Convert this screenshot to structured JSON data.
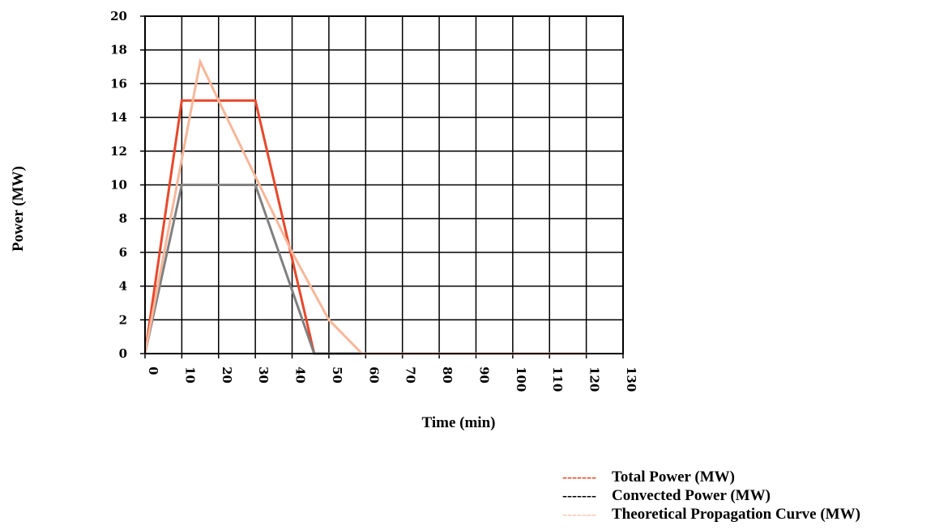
{
  "chart_data": {
    "type": "line",
    "title": "",
    "xlabel": "Time (min)",
    "ylabel": "Power (MW)",
    "xlim": [
      0,
      130
    ],
    "ylim": [
      0,
      20
    ],
    "x_ticks": [
      "0",
      "10",
      "20",
      "30",
      "40",
      "50",
      "60",
      "70",
      "80",
      "90",
      "100",
      "110",
      "120",
      "130"
    ],
    "y_ticks": [
      "0",
      "2",
      "4",
      "6",
      "8",
      "10",
      "12",
      "14",
      "16",
      "18",
      "20"
    ],
    "grid": true,
    "legend_position": "bottom-right",
    "series": [
      {
        "name": "Total Power (MW)",
        "legend_dash": "-------",
        "color": "#e8472a",
        "x": [
          0,
          10,
          30,
          46,
          120
        ],
        "y": [
          0,
          15,
          15,
          0,
          0
        ]
      },
      {
        "name": "Convected Power (MW)",
        "legend_dash": "-------",
        "color": "#808080",
        "x": [
          0,
          10,
          30,
          46,
          120
        ],
        "y": [
          0,
          10,
          10,
          0,
          0
        ]
      },
      {
        "name": "Theoretical Propagation Curve (MW)",
        "legend_dash": "-------",
        "color": "#f7b79a",
        "x": [
          0,
          15,
          20,
          30,
          40,
          50,
          59,
          120
        ],
        "y": [
          0,
          17.3,
          15,
          10.5,
          6,
          2,
          0,
          0
        ]
      }
    ]
  }
}
